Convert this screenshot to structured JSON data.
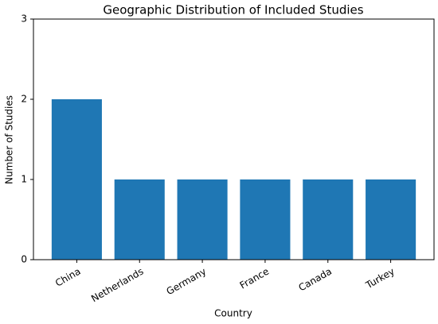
{
  "chart_data": {
    "type": "bar",
    "title": "Geographic Distribution of Included Studies",
    "x_label": "Country",
    "y_label": "Number of Studies",
    "categories": [
      "China",
      "Netherlands",
      "Germany",
      "France",
      "Canada",
      "Turkey"
    ],
    "values": [
      2,
      1,
      1,
      1,
      1,
      1
    ],
    "color": "#1f77b4",
    "ylim": [
      0,
      3
    ],
    "yticks": [
      0,
      1,
      2,
      3
    ],
    "grid": false
  }
}
